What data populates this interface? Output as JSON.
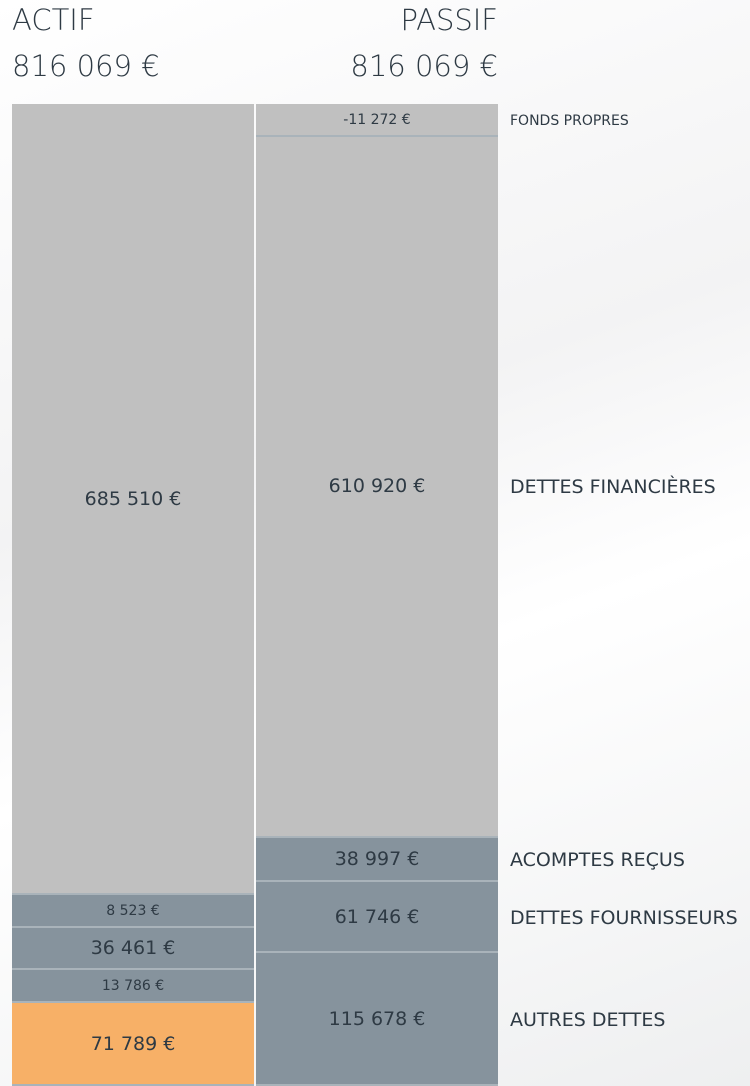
{
  "chart_data": {
    "type": "balance",
    "columns": [
      {
        "name": "ACTIF",
        "total": 816069,
        "total_label": "816 069 €",
        "segments": [
          {
            "color": "#c0c0c0",
            "value": 685510,
            "value_label": "685 510 €"
          },
          {
            "color": "#86939d",
            "value": 8523,
            "value_label": "8 523 €"
          },
          {
            "color": "#86939d",
            "value": 36461,
            "value_label": "36 461 €"
          },
          {
            "color": "#86939d",
            "value": 13786,
            "value_label": "13 786 €"
          },
          {
            "color": "#f7b067",
            "value": 71789,
            "value_label": "71 789 €"
          }
        ]
      },
      {
        "name": "PASSIF",
        "total": 816069,
        "total_label": "816 069 €",
        "segments": [
          {
            "name": "FONDS PROPRES",
            "color": "#c0c0c0",
            "value": -11272,
            "value_label": "-11 272 €"
          },
          {
            "name": "DETTES FINANCIÈRES",
            "color": "#c0c0c0",
            "value": 610920,
            "value_label": "610 920 €"
          },
          {
            "name": "ACOMPTES REÇUS",
            "color": "#86939d",
            "value": 38997,
            "value_label": "38 997 €"
          },
          {
            "name": "DETTES FOURNISSEURS",
            "color": "#86939d",
            "value": 61746,
            "value_label": "61 746 €"
          },
          {
            "name": "AUTRES DETTES",
            "color": "#86939d",
            "value": 115678,
            "value_label": "115 678 €"
          }
        ]
      }
    ]
  }
}
